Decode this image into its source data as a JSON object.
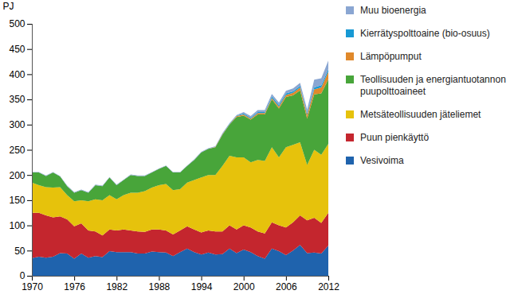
{
  "chart_data": {
    "type": "area",
    "stacked": true,
    "legend": "right",
    "grid": false,
    "y_label": "PJ",
    "x": [
      1970,
      1971,
      1972,
      1973,
      1974,
      1975,
      1976,
      1977,
      1978,
      1979,
      1980,
      1981,
      1982,
      1983,
      1984,
      1985,
      1986,
      1987,
      1988,
      1989,
      1990,
      1991,
      1992,
      1993,
      1994,
      1995,
      1996,
      1997,
      1998,
      1999,
      2000,
      2001,
      2002,
      2003,
      2004,
      2005,
      2006,
      2007,
      2008,
      2009,
      2010,
      2011,
      2012
    ],
    "xlim": [
      1970,
      2012
    ],
    "xticks": [
      1970,
      1976,
      1982,
      1988,
      1994,
      2000,
      2006,
      2012
    ],
    "ylim": [
      0,
      500
    ],
    "yticks": [
      0,
      50,
      100,
      150,
      200,
      250,
      300,
      350,
      400,
      450,
      500
    ],
    "series": [
      {
        "name": "Vesivoima",
        "color": "#1f63ad",
        "values": [
          35,
          38,
          36,
          38,
          45,
          44,
          34,
          44,
          36,
          39,
          37,
          49,
          47,
          47,
          47,
          44,
          44,
          48,
          47,
          46,
          39,
          47,
          54,
          47,
          42,
          46,
          42,
          43,
          54,
          45,
          52,
          47,
          39,
          34,
          54,
          49,
          41,
          50,
          61,
          45,
          46,
          44,
          60
        ]
      },
      {
        "name": "Puun pienkäyttö",
        "color": "#c4262e",
        "values": [
          90,
          87,
          84,
          78,
          73,
          68,
          64,
          60,
          54,
          49,
          43,
          43,
          43,
          45,
          43,
          44,
          43,
          44,
          45,
          44,
          43,
          43,
          44,
          45,
          44,
          44,
          46,
          45,
          46,
          47,
          48,
          49,
          49,
          50,
          52,
          51,
          55,
          56,
          59,
          65,
          69,
          61,
          65
        ]
      },
      {
        "name": "Metsäteollisuuden jäteliemet",
        "color": "#e6c20c",
        "values": [
          60,
          55,
          56,
          59,
          58,
          48,
          50,
          46,
          58,
          64,
          70,
          68,
          62,
          68,
          75,
          77,
          81,
          83,
          88,
          92,
          88,
          82,
          87,
          98,
          109,
          110,
          112,
          130,
          138,
          143,
          135,
          129,
          142,
          144,
          149,
          135,
          159,
          154,
          145,
          110,
          135,
          135,
          137
        ]
      },
      {
        "name": "Teollisuuden ja energiantuotannon puupolttoaineet",
        "color": "#48a53a",
        "values": [
          20,
          25,
          22,
          30,
          21,
          18,
          17,
          20,
          17,
          28,
          28,
          35,
          28,
          30,
          35,
          33,
          30,
          30,
          32,
          36,
          35,
          33,
          33,
          40,
          50,
          52,
          55,
          62,
          62,
          80,
          83,
          85,
          90,
          92,
          95,
          97,
          100,
          98,
          103,
          92,
          110,
          122,
          128
        ]
      },
      {
        "name": "Lämpöpumput",
        "color": "#e0892b",
        "values": [
          0,
          0,
          0,
          0,
          0,
          0,
          0,
          0,
          0,
          0,
          0,
          0,
          0,
          0,
          0,
          0,
          0,
          0,
          0,
          0,
          0,
          0,
          0,
          0,
          0,
          0,
          1,
          1,
          1,
          2,
          2,
          2,
          3,
          3,
          3,
          4,
          4,
          5,
          6,
          7,
          10,
          12,
          15
        ]
      },
      {
        "name": "Kierrätyspolttoaine (bio-osuus)",
        "color": "#1799d4",
        "values": [
          0,
          0,
          0,
          0,
          0,
          0,
          0,
          0,
          0,
          0,
          0,
          0,
          0,
          0,
          0,
          0,
          0,
          0,
          0,
          0,
          0,
          0,
          0,
          0,
          0,
          0,
          0,
          1,
          1,
          1,
          2,
          2,
          2,
          2,
          3,
          3,
          3,
          3,
          3,
          3,
          4,
          4,
          5
        ]
      },
      {
        "name": "Muu bioenergia",
        "color": "#8aa6d2",
        "values": [
          1,
          1,
          1,
          1,
          1,
          1,
          1,
          1,
          1,
          1,
          1,
          1,
          1,
          1,
          1,
          1,
          1,
          1,
          1,
          1,
          1,
          1,
          1,
          1,
          1,
          1,
          1,
          1,
          1,
          1,
          3,
          3,
          4,
          4,
          5,
          5,
          5,
          6,
          6,
          8,
          15,
          14,
          17
        ]
      }
    ]
  }
}
